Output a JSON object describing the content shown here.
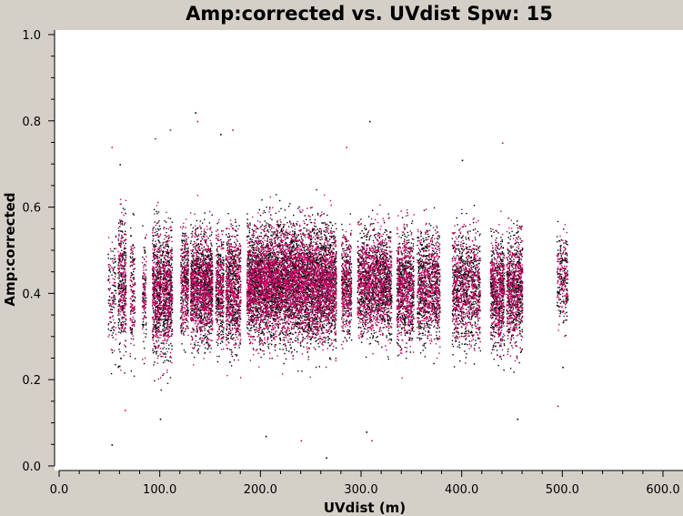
{
  "chart_data": {
    "type": "scatter",
    "title": "Amp:corrected vs. UVdist Spw: 15",
    "xlabel": "UVdist (m)",
    "ylabel": "Amp:corrected",
    "xlim": [
      0,
      600
    ],
    "ylim": [
      0,
      1
    ],
    "x_ticks": [
      "0.0",
      "100.0",
      "200.0",
      "300.0",
      "400.0",
      "500.0",
      "600.0"
    ],
    "y_ticks": [
      "0.0",
      "0.2",
      "0.4",
      "0.6",
      "0.8",
      "1.0"
    ],
    "grid": false,
    "legend": "none",
    "series": [
      {
        "color": "#000000"
      },
      {
        "color": "#cc0066"
      }
    ],
    "clusters": [
      {
        "x": [
          48,
          56
        ],
        "y": [
          0.18,
          0.64
        ],
        "n": 140
      },
      {
        "x": [
          58,
          66
        ],
        "y": [
          0.17,
          0.68
        ],
        "n": 420
      },
      {
        "x": [
          70,
          75
        ],
        "y": [
          0.18,
          0.62
        ],
        "n": 160
      },
      {
        "x": [
          82,
          86
        ],
        "y": [
          0.19,
          0.6
        ],
        "n": 140
      },
      {
        "x": [
          92,
          101
        ],
        "y": [
          0.16,
          0.65
        ],
        "n": 620
      },
      {
        "x": [
          102,
          112
        ],
        "y": [
          0.17,
          0.64
        ],
        "n": 700
      },
      {
        "x": [
          120,
          128
        ],
        "y": [
          0.22,
          0.62
        ],
        "n": 420
      },
      {
        "x": [
          130,
          152
        ],
        "y": [
          0.2,
          0.63
        ],
        "n": 1600
      },
      {
        "x": [
          155,
          163
        ],
        "y": [
          0.21,
          0.61
        ],
        "n": 480
      },
      {
        "x": [
          165,
          180
        ],
        "y": [
          0.18,
          0.64
        ],
        "n": 900
      },
      {
        "x": [
          186,
          198
        ],
        "y": [
          0.22,
          0.63
        ],
        "n": 950
      },
      {
        "x": [
          198,
          240
        ],
        "y": [
          0.21,
          0.64
        ],
        "n": 3400
      },
      {
        "x": [
          240,
          275
        ],
        "y": [
          0.2,
          0.64
        ],
        "n": 2700
      },
      {
        "x": [
          280,
          290
        ],
        "y": [
          0.23,
          0.61
        ],
        "n": 520
      },
      {
        "x": [
          296,
          330
        ],
        "y": [
          0.22,
          0.63
        ],
        "n": 1900
      },
      {
        "x": [
          335,
          352
        ],
        "y": [
          0.2,
          0.63
        ],
        "n": 950
      },
      {
        "x": [
          355,
          378
        ],
        "y": [
          0.21,
          0.62
        ],
        "n": 1100
      },
      {
        "x": [
          390,
          418
        ],
        "y": [
          0.2,
          0.63
        ],
        "n": 1200
      },
      {
        "x": [
          428,
          442
        ],
        "y": [
          0.19,
          0.62
        ],
        "n": 800
      },
      {
        "x": [
          444,
          460
        ],
        "y": [
          0.2,
          0.62
        ],
        "n": 900
      },
      {
        "x": [
          494,
          505
        ],
        "y": [
          0.27,
          0.61
        ],
        "n": 280
      }
    ],
    "outliers": [
      {
        "x": 52,
        "y": 0.05
      },
      {
        "x": 52,
        "y": 0.74
      },
      {
        "x": 60,
        "y": 0.7
      },
      {
        "x": 95,
        "y": 0.76
      },
      {
        "x": 100,
        "y": 0.11
      },
      {
        "x": 110,
        "y": 0.78
      },
      {
        "x": 135,
        "y": 0.82
      },
      {
        "x": 137,
        "y": 0.8
      },
      {
        "x": 160,
        "y": 0.77
      },
      {
        "x": 172,
        "y": 0.78
      },
      {
        "x": 205,
        "y": 0.07
      },
      {
        "x": 240,
        "y": 0.06
      },
      {
        "x": 265,
        "y": 0.02
      },
      {
        "x": 285,
        "y": 0.74
      },
      {
        "x": 308,
        "y": 0.8
      },
      {
        "x": 310,
        "y": 0.06
      },
      {
        "x": 305,
        "y": 0.08
      },
      {
        "x": 440,
        "y": 0.75
      },
      {
        "x": 455,
        "y": 0.11
      },
      {
        "x": 495,
        "y": 0.14
      },
      {
        "x": 500,
        "y": 0.23
      },
      {
        "x": 65,
        "y": 0.13
      },
      {
        "x": 400,
        "y": 0.71
      }
    ]
  }
}
